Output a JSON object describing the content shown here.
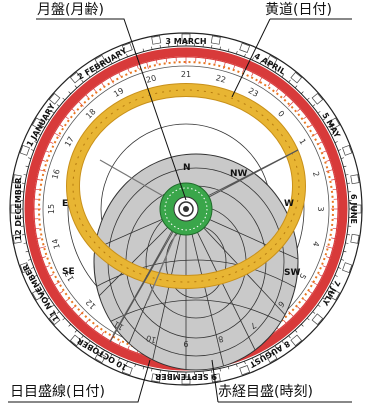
{
  "callouts": {
    "moon_dial": "月盤(月齢)",
    "ecliptic_date": "黄道(日付)",
    "day_scale_line": "日目盛線(日付)",
    "ra_scale_time": "赤経目盛(時刻)"
  },
  "months": [
    "JANUARY",
    "FEBRUARY",
    "MARCH",
    "APRIL",
    "MAY",
    "JUNE",
    "JULY",
    "AUGUST",
    "SEPTEMBER",
    "OCTOBER",
    "NOVEMBER",
    "DECEMBER"
  ],
  "month_numbers": [
    "1",
    "2",
    "3",
    "4",
    "5",
    "6",
    "7",
    "8",
    "9",
    "10",
    "11",
    "12"
  ],
  "ra_hours": [
    "22",
    "21",
    "20",
    "19",
    "18",
    "17",
    "16",
    "15",
    "14",
    "13",
    "12",
    "11",
    "10",
    "9",
    "8",
    "7",
    "6",
    "5",
    "4",
    "3",
    "2",
    "1",
    "0",
    "23"
  ],
  "directions": {
    "north": "N",
    "north_west": "NW",
    "west": "W",
    "south_west": "SW",
    "south_east": "SE",
    "east": "E"
  },
  "colors": {
    "red_band": "#d83a3a",
    "gold_ring": "#e8b533",
    "gold_edge": "#c8901a",
    "horizon_gray": "#c9c9c9",
    "moon_green": "#3aa64a",
    "tick_orange": "#e87722"
  }
}
